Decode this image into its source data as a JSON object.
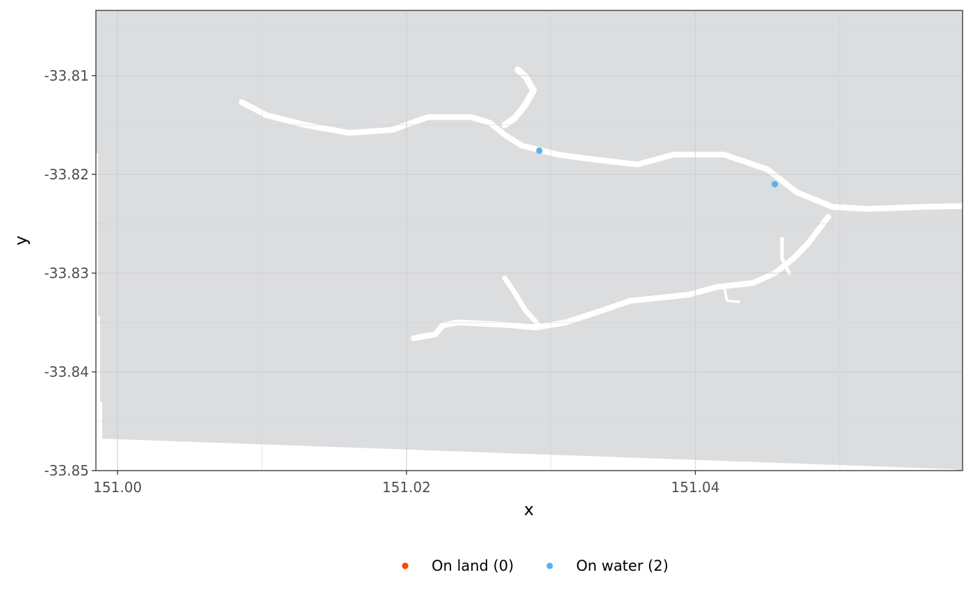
{
  "chart_data": {
    "type": "scatter",
    "xlabel": "x",
    "ylabel": "y",
    "xlim": [
      150.9985,
      151.0585
    ],
    "ylim": [
      -33.85,
      -33.8034
    ],
    "x_ticks": [
      151.0,
      151.02,
      151.04
    ],
    "x_tick_labels": [
      "151.00",
      "151.02",
      "151.04"
    ],
    "y_ticks": [
      -33.81,
      -33.82,
      -33.83,
      -33.84,
      -33.85
    ],
    "y_tick_labels": [
      "-33.81",
      "-33.82",
      "-33.83",
      "-33.84",
      "-33.85"
    ],
    "grid": true,
    "legend_position": "bottom",
    "legend": [
      {
        "label": "On land (0)",
        "color": "#FF4500"
      },
      {
        "label": "On water (2)",
        "color": "#56B4E9"
      }
    ],
    "series": [
      {
        "name": "On land (0)",
        "color": "#FF4500",
        "points": []
      },
      {
        "name": "On water (2)",
        "color": "#56B4E9",
        "points": [
          [
            151.0292,
            -33.8176
          ],
          [
            151.0455,
            -33.821
          ]
        ]
      }
    ],
    "land_color": "#DCDDDF",
    "water_color": "#FFFFFF",
    "rivers": [
      {
        "width": 0.0004,
        "points": [
          [
            151.0086,
            -33.8127
          ],
          [
            151.0103,
            -33.814
          ],
          [
            151.013,
            -33.815
          ],
          [
            151.016,
            -33.8158
          ],
          [
            151.019,
            -33.8155
          ],
          [
            151.0215,
            -33.8142
          ],
          [
            151.0245,
            -33.8142
          ],
          [
            151.0258,
            -33.8148
          ],
          [
            151.0268,
            -33.816
          ],
          [
            151.028,
            -33.8171
          ],
          [
            151.0305,
            -33.818
          ],
          [
            151.033,
            -33.8185
          ],
          [
            151.036,
            -33.819
          ],
          [
            151.0385,
            -33.818
          ],
          [
            151.042,
            -33.818
          ],
          [
            151.045,
            -33.8195
          ],
          [
            151.047,
            -33.8218
          ],
          [
            151.0495,
            -33.8233
          ],
          [
            151.052,
            -33.8235
          ],
          [
            151.0555,
            -33.8233
          ],
          [
            151.059,
            -33.8232
          ]
        ]
      },
      {
        "width": 0.00045,
        "points": [
          [
            151.0268,
            -33.815
          ],
          [
            151.0275,
            -33.8143
          ],
          [
            151.0282,
            -33.813
          ],
          [
            151.0288,
            -33.8115
          ],
          [
            151.0283,
            -33.8102
          ],
          [
            151.0277,
            -33.8094
          ]
        ]
      },
      {
        "width": 0.0004,
        "points": [
          [
            151.0205,
            -33.8366
          ],
          [
            151.022,
            -33.8362
          ],
          [
            151.0225,
            -33.8353
          ],
          [
            151.0235,
            -33.835
          ],
          [
            151.0265,
            -33.8352
          ],
          [
            151.029,
            -33.8355
          ],
          [
            151.031,
            -33.835
          ],
          [
            151.0335,
            -33.8338
          ],
          [
            151.0355,
            -33.8328
          ],
          [
            151.0375,
            -33.8325
          ],
          [
            151.0395,
            -33.8322
          ],
          [
            151.0415,
            -33.8314
          ],
          [
            151.044,
            -33.831
          ],
          [
            151.0455,
            -33.83
          ],
          [
            151.0468,
            -33.8285
          ],
          [
            151.0478,
            -33.827
          ],
          [
            151.0492,
            -33.8243
          ]
        ]
      },
      {
        "width": 0.00035,
        "points": [
          [
            151.0268,
            -33.8305
          ],
          [
            151.0275,
            -33.832
          ],
          [
            151.0282,
            -33.8337
          ],
          [
            151.0291,
            -33.8352
          ]
        ]
      },
      {
        "width": 0.00025,
        "points": [
          [
            151.046,
            -33.8265
          ],
          [
            151.046,
            -33.8285
          ],
          [
            151.0465,
            -33.83
          ]
        ]
      },
      {
        "width": 0.00018,
        "points": [
          [
            151.042,
            -33.8315
          ],
          [
            151.0422,
            -33.8328
          ],
          [
            151.043,
            -33.8329
          ]
        ]
      }
    ]
  }
}
